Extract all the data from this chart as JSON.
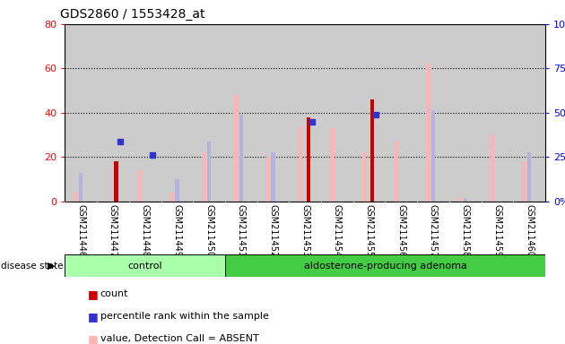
{
  "title": "GDS2860 / 1553428_at",
  "samples": [
    "GSM211446",
    "GSM211447",
    "GSM211448",
    "GSM211449",
    "GSM211450",
    "GSM211451",
    "GSM211452",
    "GSM211453",
    "GSM211454",
    "GSM211455",
    "GSM211456",
    "GSM211457",
    "GSM211458",
    "GSM211459",
    "GSM211460"
  ],
  "count": [
    0,
    18,
    0,
    0,
    0,
    0,
    0,
    38,
    0,
    46,
    0,
    0,
    0,
    0,
    0
  ],
  "percentile_rank": [
    0,
    27,
    21,
    0,
    0,
    0,
    0,
    36,
    0,
    39,
    0,
    0,
    0,
    0,
    0
  ],
  "value_absent": [
    4,
    0,
    14,
    4,
    22,
    48,
    20,
    34,
    33,
    22,
    27,
    62,
    2,
    30,
    18
  ],
  "rank_absent": [
    13,
    0,
    0,
    10,
    27,
    39,
    22,
    0,
    0,
    0,
    0,
    41,
    1,
    0,
    22
  ],
  "control_count": 5,
  "adenoma_count": 10,
  "left_ylim": [
    0,
    80
  ],
  "right_ylim": [
    0,
    100
  ],
  "left_yticks": [
    0,
    20,
    40,
    60,
    80
  ],
  "right_yticks": [
    0,
    25,
    50,
    75,
    100
  ],
  "left_yticklabels": [
    "0",
    "20",
    "40",
    "60",
    "80"
  ],
  "right_yticklabels": [
    "0%",
    "25%",
    "50%",
    "75%",
    "100%"
  ],
  "count_color": "#cc0000",
  "percentile_color": "#3333cc",
  "value_absent_color": "#ffb3b3",
  "rank_absent_color": "#b3b3dd",
  "bg_color": "#cccccc",
  "plot_bg": "#ffffff",
  "control_bg": "#aaffaa",
  "adenoma_bg": "#44cc44",
  "disease_state_label": "disease state",
  "control_label": "control",
  "adenoma_label": "aldosterone-producing adenoma",
  "bar_width": 0.12,
  "marker_size": 4
}
